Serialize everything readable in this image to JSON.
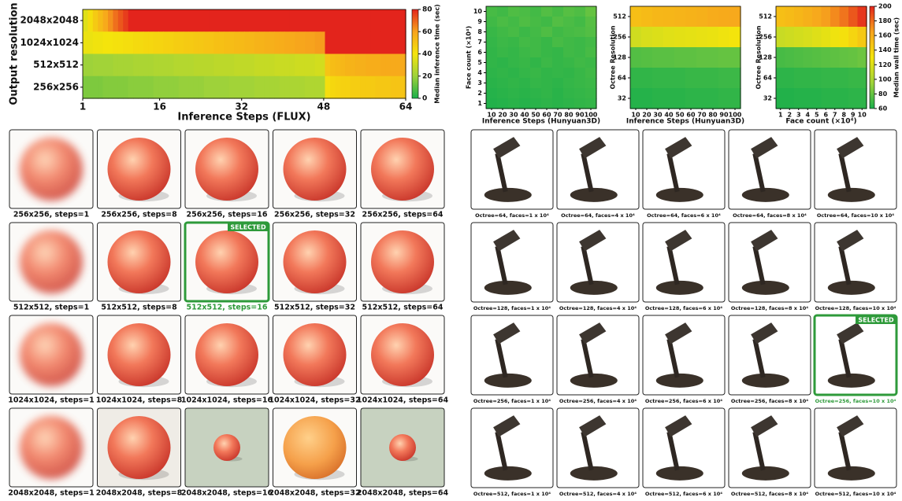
{
  "chart_data": [
    {
      "type": "heatmap",
      "xlabel": "Inference Steps (FLUX)",
      "ylabel": "Output resolution",
      "y_categories": [
        "2048x2048",
        "1024x1024",
        "512x512",
        "256x256"
      ],
      "xlim": [
        1,
        64
      ],
      "xticks": [
        1,
        16,
        32,
        48,
        64
      ],
      "clim": [
        0,
        80
      ],
      "colormap": [
        "#1aaf4b",
        "#9ed23a",
        "#f4e40c",
        "#f7a31d",
        "#e3241c"
      ],
      "values": [
        [
          35,
          42,
          48,
          53,
          58,
          63,
          68,
          72,
          76,
          80,
          80,
          80,
          80,
          80,
          80,
          80,
          80,
          80,
          80,
          80,
          80,
          80,
          80,
          80,
          80,
          80,
          80,
          80,
          80,
          80,
          80,
          80,
          80,
          80,
          80,
          80,
          80,
          80,
          80,
          80,
          80,
          80,
          80,
          80,
          80,
          80,
          80,
          80,
          80,
          80,
          80,
          80,
          80,
          80,
          80,
          80,
          80,
          80,
          80,
          80,
          80,
          80,
          80,
          80
        ],
        [
          38,
          38,
          39,
          39,
          40,
          40,
          41,
          41,
          42,
          42,
          43,
          43,
          44,
          44,
          45,
          45,
          46,
          46,
          47,
          47,
          48,
          48,
          49,
          49,
          50,
          50,
          51,
          51,
          52,
          52,
          53,
          53,
          54,
          54,
          55,
          55,
          56,
          56,
          57,
          57,
          58,
          58,
          59,
          59,
          60,
          60,
          61,
          61,
          80,
          80,
          80,
          80,
          80,
          80,
          80,
          80,
          80,
          80,
          80,
          80,
          80,
          80,
          80,
          80
        ],
        [
          20,
          20,
          21,
          21,
          21,
          21,
          22,
          22,
          22,
          22,
          23,
          23,
          23,
          23,
          24,
          24,
          24,
          24,
          25,
          25,
          25,
          25,
          26,
          26,
          26,
          26,
          27,
          27,
          27,
          27,
          28,
          28,
          28,
          28,
          29,
          29,
          29,
          29,
          30,
          30,
          30,
          30,
          31,
          31,
          31,
          31,
          32,
          32,
          50,
          52,
          53,
          54,
          55,
          55,
          56,
          56,
          57,
          57,
          57,
          58,
          58,
          58,
          58,
          58
        ],
        [
          15,
          15,
          15,
          15,
          16,
          16,
          16,
          16,
          16,
          17,
          17,
          17,
          17,
          17,
          18,
          18,
          18,
          18,
          18,
          19,
          19,
          19,
          19,
          19,
          20,
          20,
          20,
          20,
          20,
          21,
          21,
          21,
          21,
          21,
          22,
          22,
          22,
          22,
          22,
          23,
          23,
          23,
          23,
          23,
          24,
          24,
          24,
          24,
          42,
          44,
          45,
          46,
          46,
          47,
          47,
          48,
          48,
          48,
          49,
          49,
          49,
          50,
          50,
          50
        ]
      ],
      "colorbar": {
        "label": "Median inference time (sec)",
        "ticks": [
          0,
          20,
          40,
          60,
          80
        ]
      }
    },
    {
      "type": "heatmap",
      "xlabel": "Inference Steps (Hunyuan3D)",
      "ylabel": "Face count (×10⁴)",
      "categories": [
        10,
        20,
        30,
        40,
        50,
        60,
        70,
        80,
        90,
        100
      ],
      "y_categories": [
        10,
        9,
        8,
        7,
        6,
        5,
        4,
        3,
        2,
        1
      ],
      "clim": [
        60,
        200
      ],
      "colormap": [
        "#1aaf4b",
        "#9ed23a",
        "#f4e40c",
        "#f7a31d",
        "#e3241c"
      ],
      "values": [
        [
          72,
          70,
          74,
          73,
          71,
          75,
          72,
          76,
          74,
          80
        ],
        [
          70,
          73,
          71,
          74,
          72,
          70,
          75,
          73,
          71,
          76
        ],
        [
          68,
          70,
          72,
          69,
          71,
          74,
          70,
          72,
          73,
          75
        ],
        [
          67,
          69,
          68,
          71,
          70,
          68,
          72,
          70,
          69,
          71
        ],
        [
          66,
          68,
          67,
          69,
          70,
          68,
          67,
          70,
          69,
          72
        ],
        [
          66,
          65,
          67,
          68,
          66,
          69,
          67,
          68,
          70,
          69
        ],
        [
          65,
          66,
          65,
          67,
          68,
          66,
          67,
          66,
          68,
          70
        ],
        [
          64,
          65,
          66,
          65,
          67,
          66,
          65,
          67,
          68,
          69
        ],
        [
          63,
          64,
          65,
          64,
          65,
          66,
          64,
          66,
          67,
          68
        ],
        [
          62,
          63,
          64,
          63,
          64,
          65,
          64,
          65,
          66,
          67
        ]
      ]
    },
    {
      "type": "heatmap",
      "xlabel": "Inference Steps (Hunyuan3D)",
      "ylabel": "Octree Resolution",
      "categories": [
        10,
        20,
        30,
        40,
        50,
        60,
        70,
        80,
        90,
        100
      ],
      "y_categories": [
        512,
        256,
        128,
        64,
        32
      ],
      "clim": [
        60,
        200
      ],
      "colormap": [
        "#1aaf4b",
        "#9ed23a",
        "#f4e40c",
        "#f7a31d",
        "#e3241c"
      ],
      "values": [
        [
          150,
          152,
          154,
          155,
          156,
          157,
          158,
          160,
          161,
          162
        ],
        [
          115,
          118,
          120,
          122,
          123,
          124,
          125,
          126,
          128,
          130
        ],
        [
          75,
          76,
          77,
          77,
          78,
          78,
          79,
          79,
          80,
          80
        ],
        [
          66,
          66,
          67,
          67,
          67,
          68,
          68,
          68,
          69,
          69
        ],
        [
          63,
          63,
          64,
          64,
          64,
          65,
          65,
          65,
          66,
          66
        ]
      ]
    },
    {
      "type": "heatmap",
      "xlabel": "Face count (×10⁴)",
      "ylabel": "Octree Resolution",
      "categories": [
        1,
        2,
        3,
        4,
        5,
        6,
        7,
        8,
        9,
        10
      ],
      "y_categories": [
        512,
        256,
        128,
        64,
        32
      ],
      "clim": [
        60,
        200
      ],
      "colormap": [
        "#1aaf4b",
        "#9ed23a",
        "#f4e40c",
        "#f7a31d",
        "#e3241c"
      ],
      "values": [
        [
          150,
          152,
          155,
          158,
          162,
          166,
          172,
          178,
          186,
          195
        ],
        [
          112,
          114,
          116,
          118,
          121,
          124,
          128,
          132,
          138,
          145
        ],
        [
          72,
          73,
          74,
          75,
          76,
          77,
          78,
          79,
          80,
          82
        ],
        [
          65,
          65,
          66,
          66,
          66,
          67,
          67,
          67,
          68,
          68
        ],
        [
          62,
          62,
          63,
          63,
          63,
          64,
          64,
          64,
          65,
          65
        ]
      ],
      "colorbar": {
        "label": "Median wall time (sec)",
        "ticks": [
          60,
          80,
          100,
          120,
          140,
          160,
          180,
          200
        ]
      }
    }
  ],
  "peach_grid": {
    "badge": "SELECTED",
    "tiles": [
      {
        "caption": "256x256, steps=1"
      },
      {
        "caption": "256x256, steps=8"
      },
      {
        "caption": "256x256, steps=16"
      },
      {
        "caption": "256x256, steps=32"
      },
      {
        "caption": "256x256, steps=64"
      },
      {
        "caption": "512x512, steps=1"
      },
      {
        "caption": "512x512, steps=8"
      },
      {
        "caption": "512x512, steps=16",
        "selected": true
      },
      {
        "caption": "512x512, steps=32"
      },
      {
        "caption": "512x512, steps=64"
      },
      {
        "caption": "1024x1024, steps=1"
      },
      {
        "caption": "1024x1024, steps=8"
      },
      {
        "caption": "1024x1024, steps=16"
      },
      {
        "caption": "1024x1024, steps=32"
      },
      {
        "caption": "1024x1024, steps=64"
      },
      {
        "caption": "2048x2048, steps=1"
      },
      {
        "caption": "2048x2048, steps=8"
      },
      {
        "caption": "2048x2048, steps=16"
      },
      {
        "caption": "2048x2048, steps=32"
      },
      {
        "caption": "2048x2048, steps=64"
      }
    ]
  },
  "lamp_grid": {
    "badge": "SELECTED",
    "tiles": [
      {
        "caption": "Octree=64, faces=1 x 10⁴"
      },
      {
        "caption": "Octree=64, faces=4 x 10⁴"
      },
      {
        "caption": "Octree=64, faces=6 x 10⁴"
      },
      {
        "caption": "Octree=64, faces=8 x 10⁴"
      },
      {
        "caption": "Octree=64, faces=10 x 10⁴"
      },
      {
        "caption": "Octree=128, faces=1 x 10⁴"
      },
      {
        "caption": "Octree=128, faces=4 x 10⁴"
      },
      {
        "caption": "Octree=128, faces=6 x 10⁴"
      },
      {
        "caption": "Octree=128, faces=8 x 10⁴"
      },
      {
        "caption": "Octree=128, faces=10 x 10⁴"
      },
      {
        "caption": "Octree=256, faces=1 x 10⁴"
      },
      {
        "caption": "Octree=256, faces=4 x 10⁴"
      },
      {
        "caption": "Octree=256, faces=6 x 10⁴"
      },
      {
        "caption": "Octree=256, faces=8 x 10⁴"
      },
      {
        "caption": "Octree=256, faces=10 x 10⁴",
        "selected": true
      },
      {
        "caption": "Octree=512, faces=1 x 10⁴"
      },
      {
        "caption": "Octree=512, faces=4 x 10⁴"
      },
      {
        "caption": "Octree=512, faces=6 x 10⁴"
      },
      {
        "caption": "Octree=512, faces=8 x 10⁴"
      },
      {
        "caption": "Octree=512, faces=10 x 10⁴"
      }
    ]
  }
}
